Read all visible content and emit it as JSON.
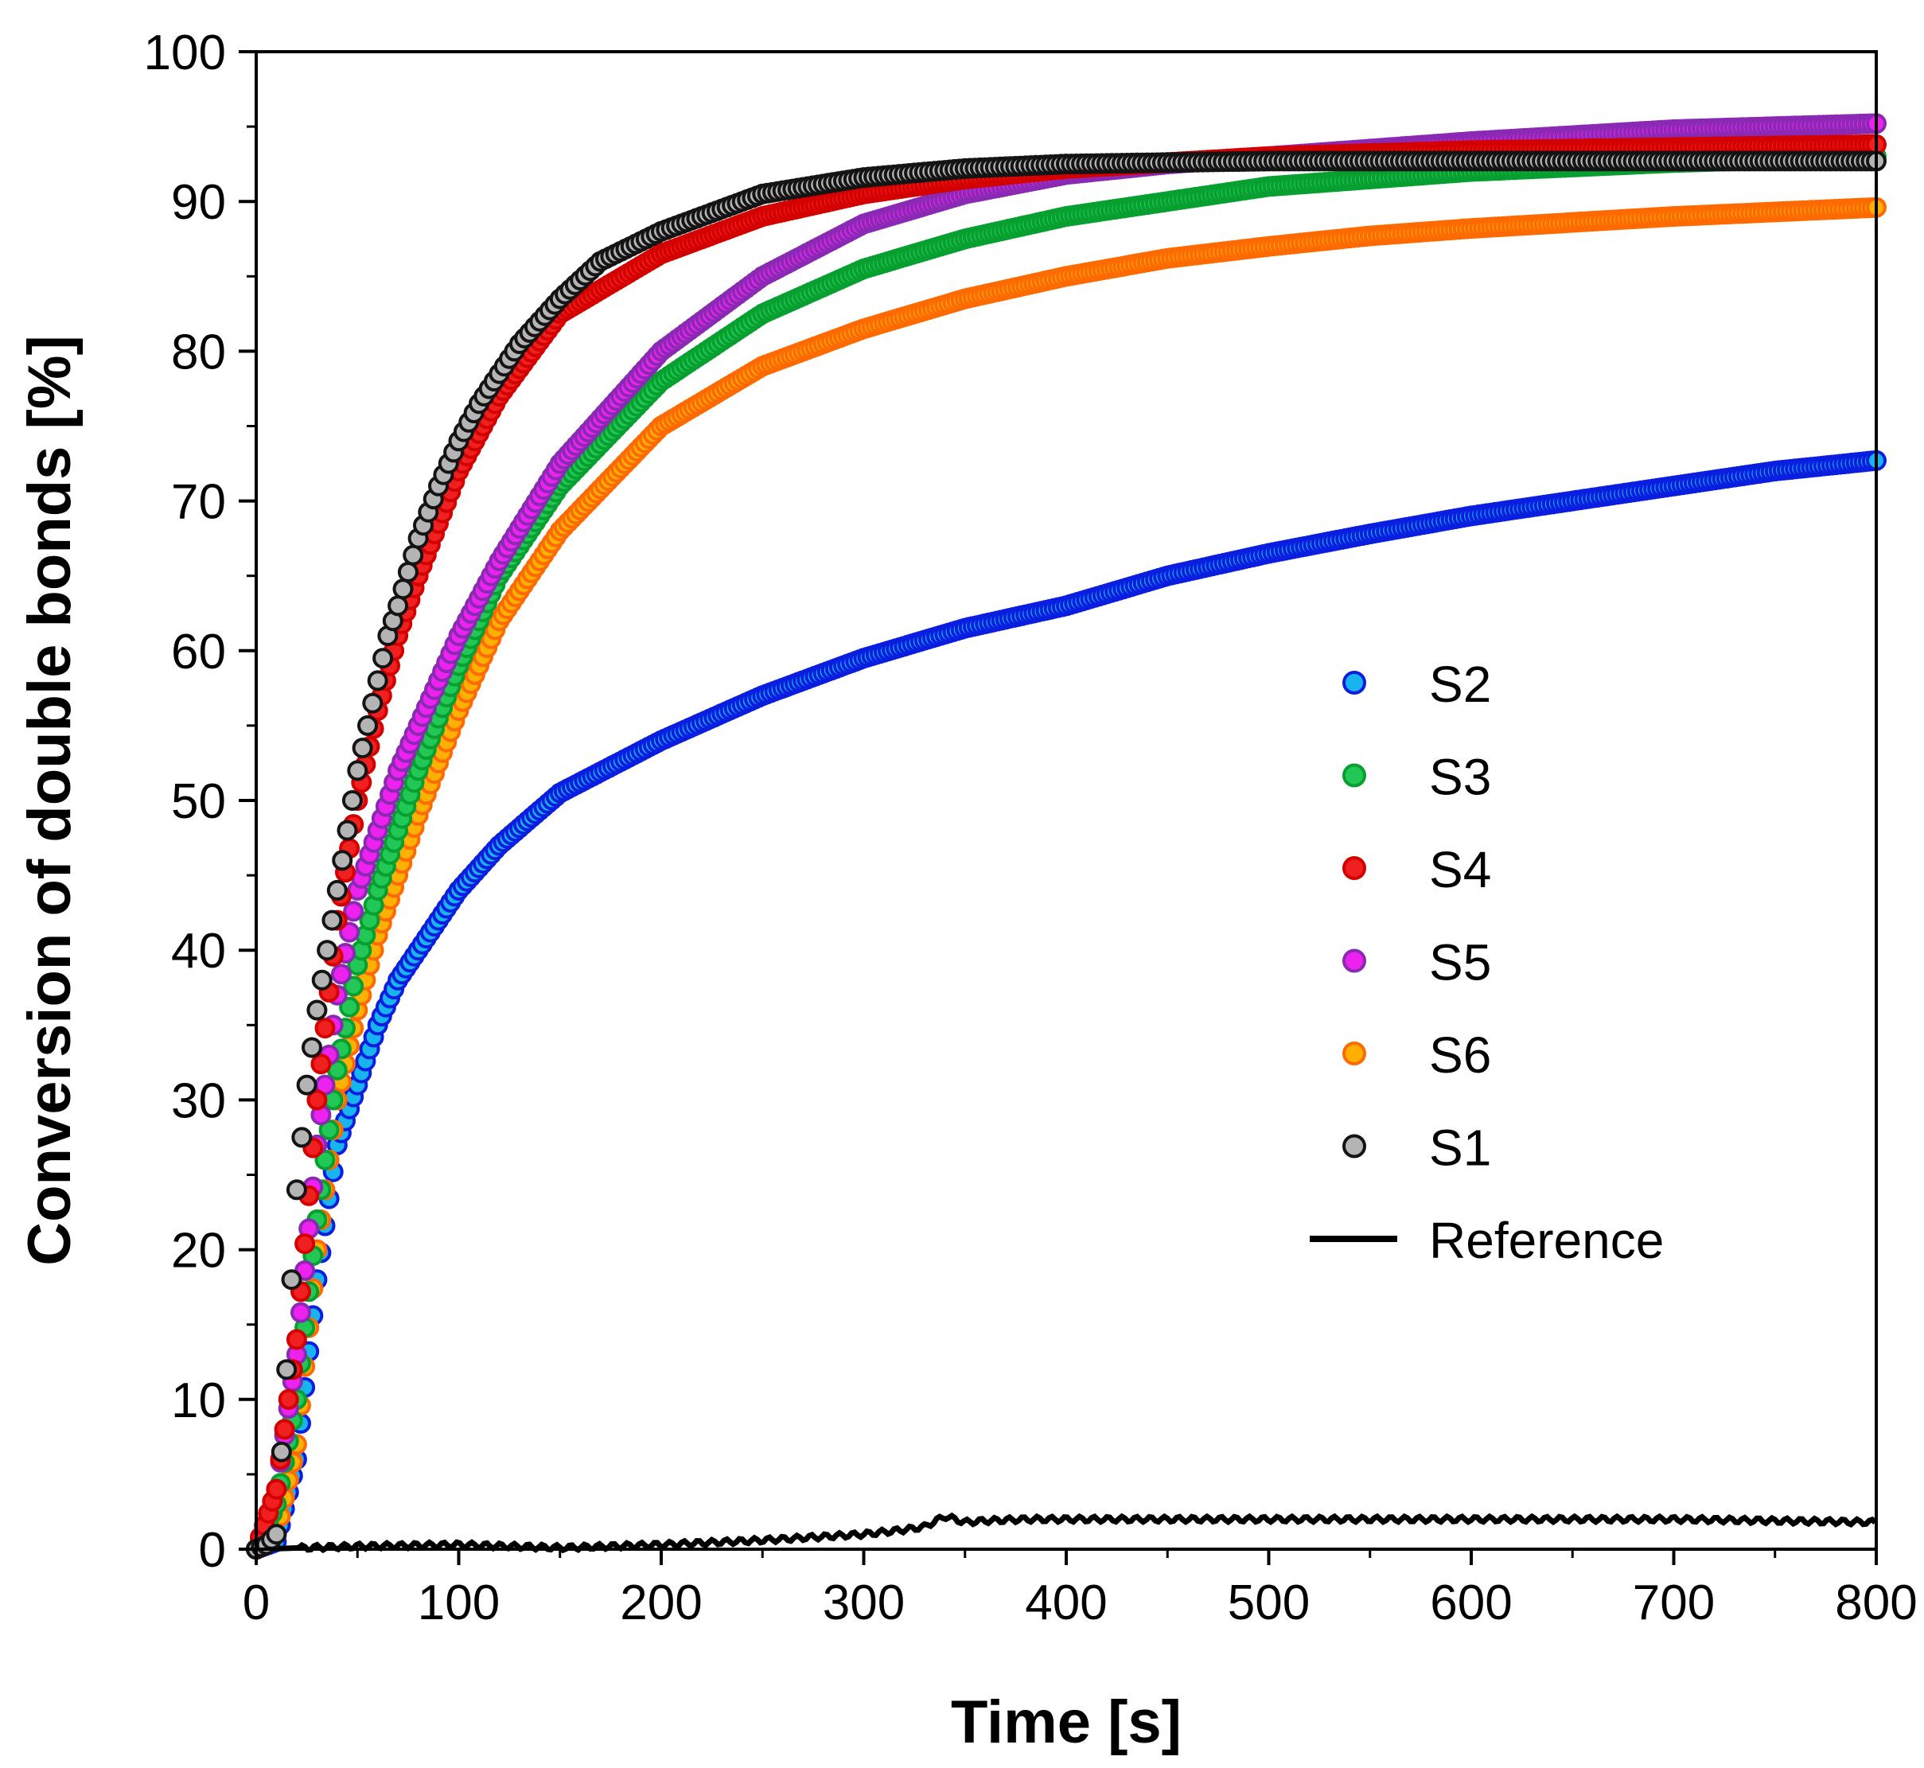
{
  "chart_data": {
    "type": "scatter",
    "xlabel": "Time [s]",
    "ylabel": "Conversion of double bonds [%]",
    "xlim": [
      0,
      800
    ],
    "ylim": [
      0,
      100
    ],
    "xticks": [
      "0",
      "100",
      "200",
      "300",
      "400",
      "500",
      "600",
      "700",
      "800"
    ],
    "yticks": [
      "0",
      "10",
      "20",
      "30",
      "40",
      "50",
      "60",
      "70",
      "80",
      "90",
      "100"
    ],
    "grid": false,
    "legend_position": "right-center",
    "series": [
      {
        "name": "S2",
        "marker": "circle",
        "fill": "#18b4f0",
        "stroke": "#0a1ee0",
        "x": [
          0,
          10,
          20,
          30,
          40,
          50,
          60,
          70,
          80,
          100,
          120,
          150,
          200,
          250,
          300,
          350,
          400,
          450,
          500,
          550,
          600,
          650,
          700,
          750,
          800
        ],
        "y": [
          0,
          0.5,
          6,
          18,
          27,
          31,
          35,
          38,
          40,
          44,
          47,
          50.5,
          54,
          57,
          59.5,
          61.5,
          63,
          65,
          66.5,
          67.8,
          69,
          70,
          71,
          72,
          72.7
        ]
      },
      {
        "name": "S3",
        "marker": "circle",
        "fill": "#22c855",
        "stroke": "#07a030",
        "x": [
          0,
          10,
          20,
          30,
          40,
          50,
          60,
          70,
          80,
          100,
          120,
          150,
          200,
          250,
          300,
          350,
          400,
          450,
          500,
          550,
          600,
          650,
          700,
          750,
          800
        ],
        "y": [
          0,
          3,
          10,
          22,
          32,
          39,
          44,
          48,
          52,
          59,
          65,
          71,
          78,
          82.5,
          85.5,
          87.5,
          89,
          90,
          91,
          91.5,
          92,
          92.3,
          92.6,
          92.8,
          93
        ]
      },
      {
        "name": "S4",
        "marker": "circle",
        "fill": "#f02020",
        "stroke": "#d40000",
        "x": [
          0,
          10,
          20,
          30,
          40,
          50,
          60,
          70,
          80,
          100,
          120,
          150,
          200,
          250,
          300,
          350,
          400,
          450,
          500,
          550,
          600,
          650,
          700,
          750,
          800
        ],
        "y": [
          0,
          4,
          14,
          30,
          42,
          50,
          56,
          61,
          65,
          72,
          77,
          82.5,
          86.5,
          89,
          90.5,
          91.5,
          92.2,
          92.6,
          93,
          93.2,
          93.4,
          93.5,
          93.6,
          93.7,
          93.8
        ]
      },
      {
        "name": "S5",
        "marker": "circle",
        "fill": "#ee22ee",
        "stroke": "#8a2ab4",
        "x": [
          0,
          10,
          20,
          30,
          40,
          50,
          60,
          70,
          80,
          100,
          120,
          150,
          200,
          250,
          300,
          350,
          400,
          450,
          500,
          550,
          600,
          650,
          700,
          750,
          800
        ],
        "y": [
          0,
          4,
          13,
          27,
          37,
          44,
          48,
          52,
          55,
          61,
          66,
          72.5,
          80,
          85,
          88.5,
          90.5,
          91.8,
          92.5,
          93,
          93.5,
          94,
          94.4,
          94.8,
          95,
          95.2
        ]
      },
      {
        "name": "S6",
        "marker": "circle",
        "fill": "#ffb000",
        "stroke": "#ff6a00",
        "x": [
          0,
          10,
          20,
          30,
          40,
          50,
          60,
          70,
          80,
          100,
          120,
          150,
          200,
          250,
          300,
          350,
          400,
          450,
          500,
          550,
          600,
          650,
          700,
          750,
          800
        ],
        "y": [
          0,
          1,
          7,
          20,
          30,
          36,
          41,
          45,
          49,
          56,
          62,
          68,
          75,
          79,
          81.5,
          83.5,
          85,
          86.2,
          87,
          87.7,
          88.2,
          88.6,
          89,
          89.3,
          89.6
        ]
      },
      {
        "name": "S1",
        "marker": "circle",
        "fill": "#b4b4b4",
        "stroke": "#141414",
        "x": [
          0,
          5,
          10,
          15,
          20,
          25,
          30,
          35,
          40,
          45,
          50,
          55,
          60,
          65,
          70,
          80,
          90,
          100,
          110,
          120,
          130,
          150,
          170,
          200,
          250,
          300,
          350,
          400,
          450,
          500,
          550,
          600,
          650,
          700,
          750,
          800
        ],
        "y": [
          0,
          0.3,
          1,
          12,
          24,
          31,
          36,
          40,
          44,
          48,
          52,
          55,
          58,
          61,
          63,
          67.5,
          71,
          74,
          76.5,
          78.5,
          80.5,
          83.5,
          86,
          88,
          90.5,
          91.6,
          92.2,
          92.5,
          92.6,
          92.7,
          92.7,
          92.7,
          92.7,
          92.7,
          92.7,
          92.7
        ]
      },
      {
        "name": "Reference",
        "marker": "line",
        "stroke": "#000000",
        "x": [
          0,
          50,
          100,
          150,
          200,
          250,
          300,
          320,
          330,
          340,
          350,
          360,
          380,
          400,
          500,
          600,
          700,
          800
        ],
        "y": [
          0,
          0.2,
          0.3,
          0.1,
          0.3,
          0.6,
          1,
          1.3,
          1.5,
          2.2,
          1.8,
          1.9,
          2,
          2,
          2,
          2,
          2,
          1.8
        ]
      }
    ]
  }
}
